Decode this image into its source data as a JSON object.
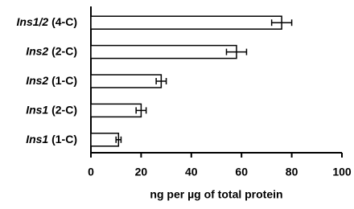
{
  "chart_data": {
    "type": "bar",
    "orientation": "horizontal",
    "categories": [
      "Ins1/2 (4-C)",
      "Ins2 (2-C)",
      "Ins2 (1-C)",
      "Ins1 (2-C)",
      "Ins1 (1-C)"
    ],
    "values": [
      76,
      58,
      28,
      20,
      11
    ],
    "errors": [
      4,
      4,
      2,
      2,
      1
    ],
    "color": "#ffffff",
    "xlabel": "ng per µg of total protein",
    "xlim": [
      0,
      100
    ],
    "xticks": [
      0,
      20,
      40,
      60,
      80,
      100
    ],
    "grid": false
  }
}
